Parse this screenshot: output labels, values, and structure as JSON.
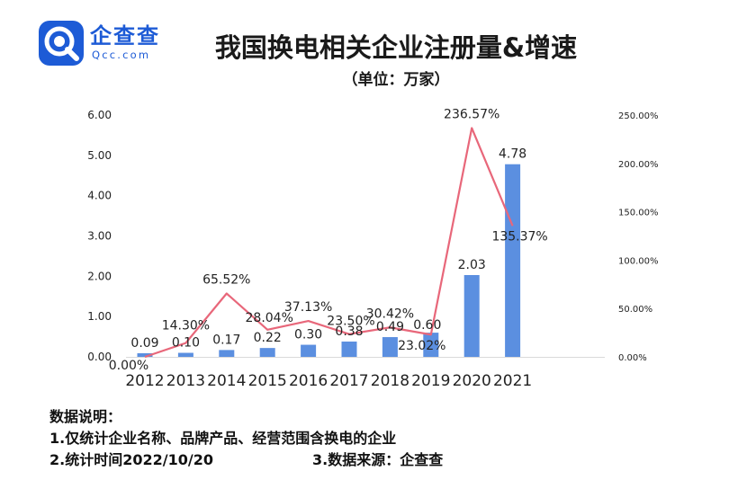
{
  "brand": {
    "name": "企查查",
    "sub": "Qcc.com",
    "icon": "qcc-logo-icon",
    "color": "#1d5bd6"
  },
  "title": "我国换电相关企业注册量&增速",
  "subtitle": "（单位：万家）",
  "chart_data": {
    "type": "bar",
    "categories": [
      "2012",
      "2013",
      "2014",
      "2015",
      "2016",
      "2017",
      "2018",
      "2019",
      "2020",
      "2021"
    ],
    "series": [
      {
        "kind": "bar",
        "axis": "left",
        "color": "#5b8fe0",
        "values": [
          0.09,
          0.1,
          0.17,
          0.22,
          0.3,
          0.38,
          0.49,
          0.6,
          2.03,
          4.78
        ],
        "labels": [
          "0.09",
          "0.10",
          "0.17",
          "0.22",
          "0.30",
          "0.38",
          "0.49",
          "0.60",
          "2.03",
          "4.78"
        ]
      },
      {
        "kind": "line",
        "axis": "right",
        "color": "#e8677a",
        "values": [
          0.0,
          14.3,
          65.52,
          28.04,
          37.13,
          23.5,
          30.42,
          23.02,
          236.57,
          135.37
        ],
        "labels": [
          "0.00%",
          "14.30%",
          "65.52%",
          "28.04%",
          "37.13%",
          "23.50%",
          "30.42%",
          "23.02%",
          "236.57%",
          "135.37%"
        ]
      }
    ],
    "y_left": {
      "ylim": [
        0,
        6
      ],
      "ticks": [
        "0.00",
        "1.00",
        "2.00",
        "3.00",
        "4.00",
        "5.00",
        "6.00"
      ]
    },
    "y_right": {
      "ylim": [
        0,
        250
      ],
      "ticks": [
        "0.00%",
        "50.00%",
        "100.00%",
        "150.00%",
        "200.00%",
        "250.00%"
      ]
    },
    "grid": false,
    "legend": "none"
  },
  "notes": {
    "heading": "数据说明：",
    "line1": "1.仅统计企业名称、品牌产品、经营范围含换电的企业",
    "line2": "2.统计时间2022/10/20",
    "line3": "3.数据来源：企查查"
  }
}
